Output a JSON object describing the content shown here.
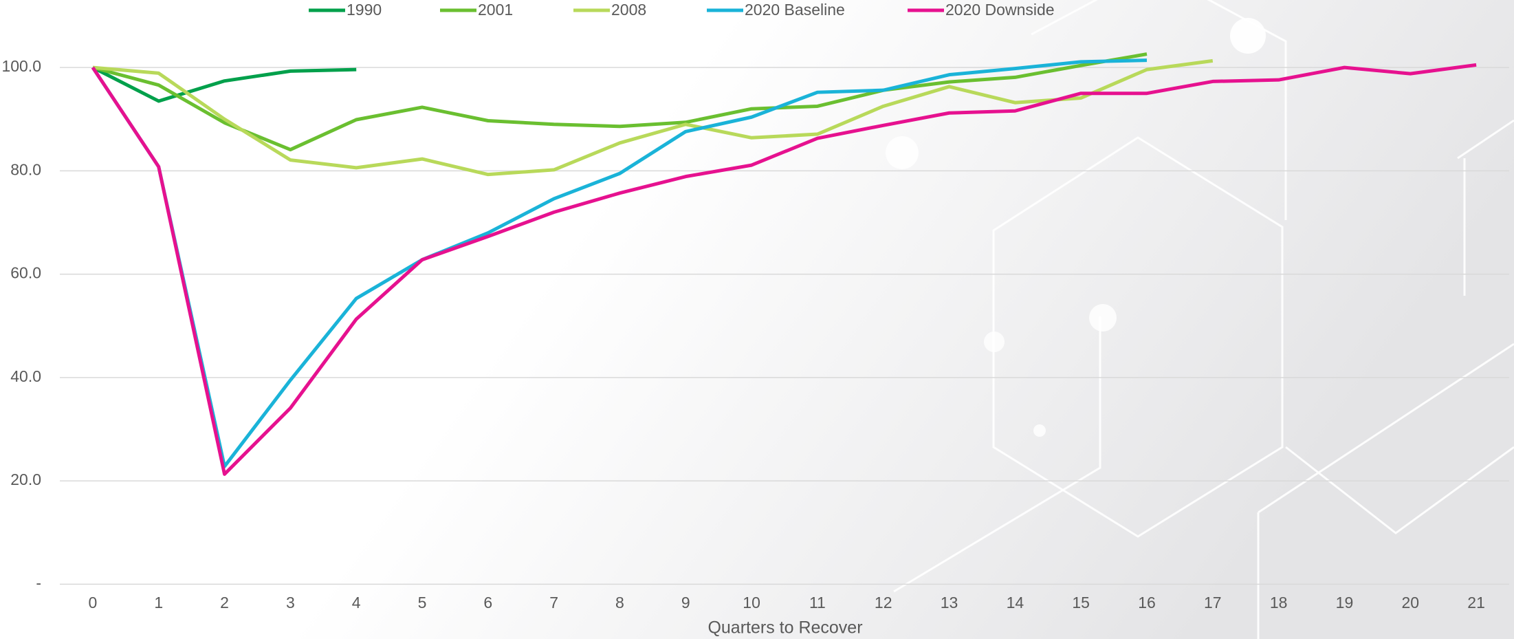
{
  "chart_data": {
    "type": "line",
    "x_label": "Quarters to Recover",
    "x": [
      0,
      1,
      2,
      3,
      4,
      5,
      6,
      7,
      8,
      9,
      10,
      11,
      12,
      13,
      14,
      15,
      16,
      17,
      18,
      19,
      20,
      21
    ],
    "xlim": [
      -0.5,
      21.5
    ],
    "xticks": [
      0,
      1,
      2,
      3,
      4,
      5,
      6,
      7,
      8,
      9,
      10,
      11,
      12,
      13,
      14,
      15,
      16,
      17,
      18,
      19,
      20,
      21
    ],
    "ylim": [
      0,
      110
    ],
    "yticks": [
      {
        "value": 0,
        "label": "-"
      },
      {
        "value": 20,
        "label": "20.0"
      },
      {
        "value": 40,
        "label": "40.0"
      },
      {
        "value": 60,
        "label": "60.0"
      },
      {
        "value": 80,
        "label": "80.0"
      },
      {
        "value": 100,
        "label": "100.0"
      }
    ],
    "grid": true,
    "legend": "top",
    "series": [
      {
        "name": "1990",
        "color": "#00a04b",
        "values": [
          100,
          93.5,
          97.4,
          99.3,
          99.6,
          null,
          null,
          null,
          null,
          null,
          null,
          null,
          null,
          null,
          null,
          null,
          null,
          null,
          null,
          null,
          null,
          null
        ]
      },
      {
        "name": "2001",
        "color": "#6abf30",
        "values": [
          100,
          96.6,
          89.3,
          84.1,
          89.9,
          92.3,
          89.7,
          89.0,
          88.6,
          89.4,
          92.0,
          92.5,
          95.6,
          97.2,
          98.1,
          100.4,
          102.6,
          null,
          null,
          null,
          null,
          null
        ]
      },
      {
        "name": "2008",
        "color": "#b8d95a",
        "values": [
          100,
          98.9,
          90.0,
          82.1,
          80.6,
          82.3,
          79.3,
          80.2,
          85.4,
          89.0,
          86.4,
          87.1,
          92.5,
          96.3,
          93.2,
          94.1,
          99.6,
          101.3,
          null,
          null,
          null,
          null
        ]
      },
      {
        "name": "2020 Baseline",
        "color": "#1ab3d8",
        "values": [
          100,
          80.8,
          22.8,
          39.5,
          55.3,
          62.8,
          68.0,
          74.6,
          79.5,
          87.6,
          90.4,
          95.2,
          95.6,
          98.6,
          99.8,
          101.1,
          101.4,
          null,
          null,
          null,
          null,
          null
        ]
      },
      {
        "name": "2020 Downside",
        "color": "#e6118f",
        "values": [
          100,
          80.8,
          21.3,
          34.1,
          51.3,
          62.8,
          67.3,
          72.0,
          75.7,
          78.9,
          81.1,
          86.3,
          88.8,
          91.2,
          91.6,
          95.0,
          95.0,
          97.3,
          97.6,
          100.0,
          98.8,
          100.5
        ]
      }
    ]
  }
}
